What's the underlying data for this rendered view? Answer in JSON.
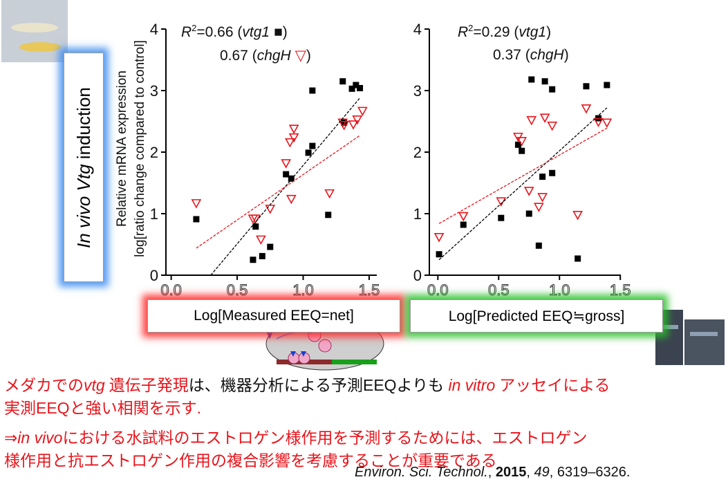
{
  "chart_data": [
    {
      "type": "scatter",
      "annotation": [
        [
          "R",
          "2",
          "=0.66 (",
          "vtg1",
          "■",
          ")"
        ],
        [
          "0.67 (",
          "chgH",
          "▽",
          ")"
        ]
      ],
      "ylabel": [
        "Relative mRNA expression",
        "log[ratio change compared to control]"
      ],
      "xlabel": "Log[Measured EEQ=net]",
      "xlim": [
        -0.04,
        1.6
      ],
      "ylim": [
        0,
        4
      ],
      "xticks": [
        {
          "value": 0,
          "label": "0.0"
        },
        {
          "value": 0.5,
          "label": "0.5"
        },
        {
          "value": 1,
          "label": "1.0"
        },
        {
          "value": 1.5,
          "label": "1.5"
        }
      ],
      "yticks": [
        0,
        1,
        2,
        3,
        4
      ],
      "series": [
        {
          "color": "#000000",
          "marker": "square",
          "x": [
            0.19,
            0.62,
            0.64,
            0.69,
            0.75,
            0.87,
            0.91,
            1.04,
            1.07,
            1.07,
            1.19,
            1.3,
            1.31,
            1.37,
            1.4,
            1.43
          ],
          "values": [
            0.91,
            0.25,
            0.79,
            0.31,
            0.46,
            1.64,
            1.57,
            1.99,
            2.1,
            3.0,
            0.98,
            3.15,
            2.48,
            3.03,
            3.09,
            3.04
          ]
        },
        {
          "color": "#e8141b",
          "marker": "triangle",
          "x": [
            0.19,
            0.62,
            0.64,
            0.68,
            0.75,
            0.87,
            0.91,
            0.9,
            0.93,
            0.93,
            1.2,
            1.3,
            1.31,
            1.38,
            1.41,
            1.45
          ],
          "values": [
            1.17,
            0.92,
            0.92,
            0.58,
            1.08,
            1.82,
            1.24,
            2.16,
            2.24,
            2.38,
            1.33,
            2.48,
            2.44,
            2.45,
            2.53,
            2.67
          ]
        },
        {
          "color": "#000000",
          "marker": "dashed-line",
          "x": [
            0.3,
            1.43
          ],
          "values": [
            0,
            2.88
          ]
        },
        {
          "color": "#e8141b",
          "marker": "dashed-line",
          "x": [
            0.19,
            1.43
          ],
          "values": [
            0.44,
            2.27
          ]
        }
      ]
    },
    {
      "type": "scatter",
      "annotation": [
        [
          "R",
          "2",
          "=0.29 (",
          "vtg1",
          ")"
        ],
        [
          "0.37 (",
          "chgH",
          ")"
        ]
      ],
      "xlabel": "Log[Predicted EEQ≒gross]",
      "xlim": [
        -0.07,
        1.55
      ],
      "ylim": [
        0,
        4
      ],
      "xticks": [
        {
          "value": 0,
          "label": "0.0"
        },
        {
          "value": 0.5,
          "label": "0.5"
        },
        {
          "value": 1,
          "label": "1.0"
        },
        {
          "value": 1.5,
          "label": "1.5"
        }
      ],
      "yticks": [
        0,
        1,
        2,
        3,
        4
      ],
      "series": [
        {
          "color": "#000000",
          "marker": "square",
          "x": [
            0.01,
            0.21,
            0.52,
            0.66,
            0.69,
            0.75,
            0.77,
            0.83,
            0.86,
            0.88,
            0.94,
            0.94,
            1.15,
            1.22,
            1.32,
            1.39
          ],
          "values": [
            0.34,
            0.82,
            0.93,
            2.12,
            2.02,
            1.0,
            3.18,
            0.48,
            1.6,
            3.15,
            1.66,
            3.02,
            0.27,
            3.07,
            2.55,
            3.09
          ]
        },
        {
          "color": "#e8141b",
          "marker": "triangle",
          "x": [
            0.01,
            0.21,
            0.52,
            0.66,
            0.69,
            0.75,
            0.77,
            0.83,
            0.86,
            0.88,
            0.94,
            1.15,
            1.22,
            1.32,
            1.39
          ],
          "values": [
            0.62,
            0.96,
            1.2,
            2.25,
            2.18,
            1.37,
            2.52,
            1.11,
            1.27,
            2.56,
            2.43,
            0.98,
            2.71,
            2.49,
            2.48
          ]
        },
        {
          "color": "#000000",
          "marker": "dashed-line",
          "x": [
            0.01,
            1.39
          ],
          "values": [
            0.25,
            2.72
          ]
        },
        {
          "color": "#e8141b",
          "marker": "dashed-line",
          "x": [
            0.01,
            1.39
          ],
          "values": [
            0.84,
            2.39
          ]
        }
      ]
    }
  ],
  "slide": {
    "side_label": [
      "In vivo",
      "Vtg",
      "induction"
    ],
    "notes": [
      [
        "メダカでの",
        "vtg",
        "遺伝子発現",
        "は、機器分析による予測EEQよりも ",
        "in vitro",
        "アッセイによる"
      ],
      [
        "実測EEQと強い相関を示す."
      ],
      [
        "⇒",
        "in vivo",
        "における水試料のエストロゲン様作用を予測するためには、エストロゲン"
      ],
      [
        "様作用と抗エストロゲン作用の複合影響を考慮することが重要である"
      ]
    ],
    "citation": [
      "Environ. Sci. Technol.",
      ", ",
      "2015",
      ", ",
      "49",
      ", 6319–6326."
    ]
  }
}
